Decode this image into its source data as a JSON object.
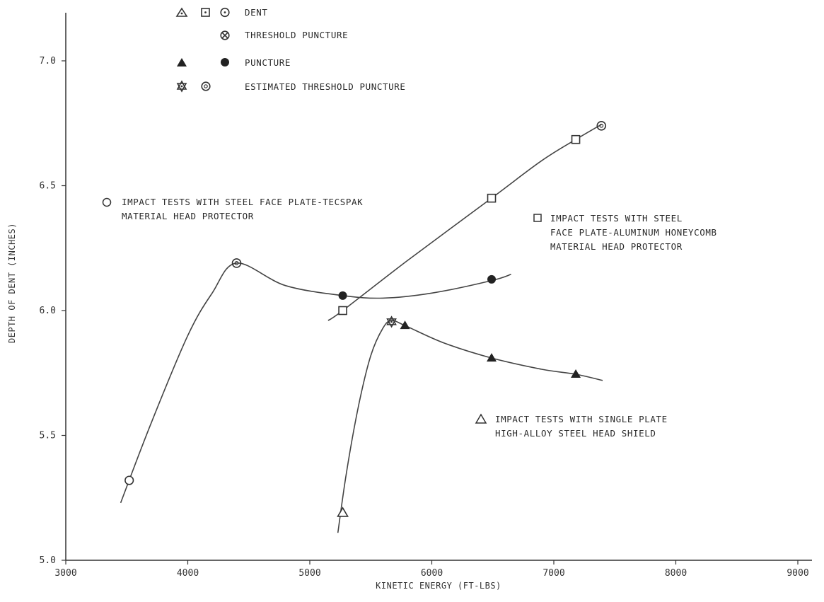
{
  "legend": {
    "dent": "DENT",
    "threshold_puncture": "THRESHOLD PUNCTURE",
    "puncture": "PUNCTURE",
    "estimated_threshold_puncture": "ESTIMATED THRESHOLD PUNCTURE"
  },
  "chart_data": {
    "type": "line",
    "xlabel": "KINETIC ENERGY (FT-LBS)",
    "ylabel": "DEPTH OF DENT (INCHES)",
    "xlim": [
      3000,
      9000
    ],
    "ylim": [
      5.0,
      7.2
    ],
    "x_ticks": [
      "3000",
      "4000",
      "5000",
      "6000",
      "7000",
      "8000",
      "9000"
    ],
    "y_ticks": [
      "5.0",
      "5.5",
      "6.0",
      "6.5",
      "7.0"
    ],
    "grid": false,
    "legend_position": "top-left",
    "series": [
      {
        "name": "IMPACT TESTS WITH STEEL FACE PLATE-TECSPAK MATERIAL HEAD PROTECTOR",
        "label_lines": [
          "IMPACT TESTS WITH STEEL FACE PLATE-TECSPAK",
          "MATERIAL HEAD PROTECTOR"
        ],
        "marker": "circle",
        "points": [
          {
            "x": 3520,
            "y": 5.32,
            "kind": "dent"
          },
          {
            "x": 4400,
            "y": 6.19,
            "kind": "estimated_threshold_puncture"
          },
          {
            "x": 5270,
            "y": 6.06,
            "kind": "puncture"
          },
          {
            "x": 6490,
            "y": 6.125,
            "kind": "puncture"
          }
        ],
        "curve": [
          [
            3450,
            5.23
          ],
          [
            3700,
            5.55
          ],
          [
            4000,
            5.9
          ],
          [
            4200,
            6.07
          ],
          [
            4400,
            6.19
          ],
          [
            4800,
            6.1
          ],
          [
            5270,
            6.06
          ],
          [
            5600,
            6.05
          ],
          [
            6000,
            6.07
          ],
          [
            6490,
            6.12
          ],
          [
            6650,
            6.145
          ]
        ]
      },
      {
        "name": "IMPACT TESTS WITH STEEL FACE PLATE-ALUMINUM HONEYCOMB MATERIAL HEAD PROTECTOR",
        "label_lines": [
          "IMPACT TESTS WITH STEEL",
          "FACE PLATE-ALUMINUM HONEYCOMB",
          "MATERIAL HEAD PROTECTOR"
        ],
        "marker": "square",
        "points": [
          {
            "x": 5270,
            "y": 6.0,
            "kind": "dent"
          },
          {
            "x": 6490,
            "y": 6.45,
            "kind": "dent"
          },
          {
            "x": 7180,
            "y": 6.685,
            "kind": "dent"
          },
          {
            "x": 7390,
            "y": 6.74,
            "kind": "estimated_threshold_puncture"
          }
        ],
        "curve": [
          [
            5150,
            5.96
          ],
          [
            5270,
            6.0
          ],
          [
            5800,
            6.2
          ],
          [
            6490,
            6.45
          ],
          [
            6900,
            6.6
          ],
          [
            7180,
            6.685
          ],
          [
            7390,
            6.745
          ]
        ]
      },
      {
        "name": "IMPACT TESTS WITH SINGLE PLATE HIGH-ALLOY STEEL HEAD SHIELD",
        "label_lines": [
          "IMPACT TESTS WITH SINGLE PLATE",
          "HIGH-ALLOY STEEL HEAD SHIELD"
        ],
        "marker": "triangle",
        "points": [
          {
            "x": 5270,
            "y": 5.19,
            "kind": "dent"
          },
          {
            "x": 5670,
            "y": 5.955,
            "kind": "estimated_threshold_puncture"
          },
          {
            "x": 5780,
            "y": 5.94,
            "kind": "puncture"
          },
          {
            "x": 6490,
            "y": 5.81,
            "kind": "puncture"
          },
          {
            "x": 7180,
            "y": 5.745,
            "kind": "puncture"
          }
        ],
        "curve": [
          [
            5230,
            5.11
          ],
          [
            5300,
            5.35
          ],
          [
            5400,
            5.62
          ],
          [
            5500,
            5.82
          ],
          [
            5600,
            5.93
          ],
          [
            5670,
            5.96
          ],
          [
            5780,
            5.94
          ],
          [
            6100,
            5.87
          ],
          [
            6490,
            5.81
          ],
          [
            6900,
            5.765
          ],
          [
            7180,
            5.745
          ],
          [
            7400,
            5.72
          ]
        ]
      }
    ]
  }
}
